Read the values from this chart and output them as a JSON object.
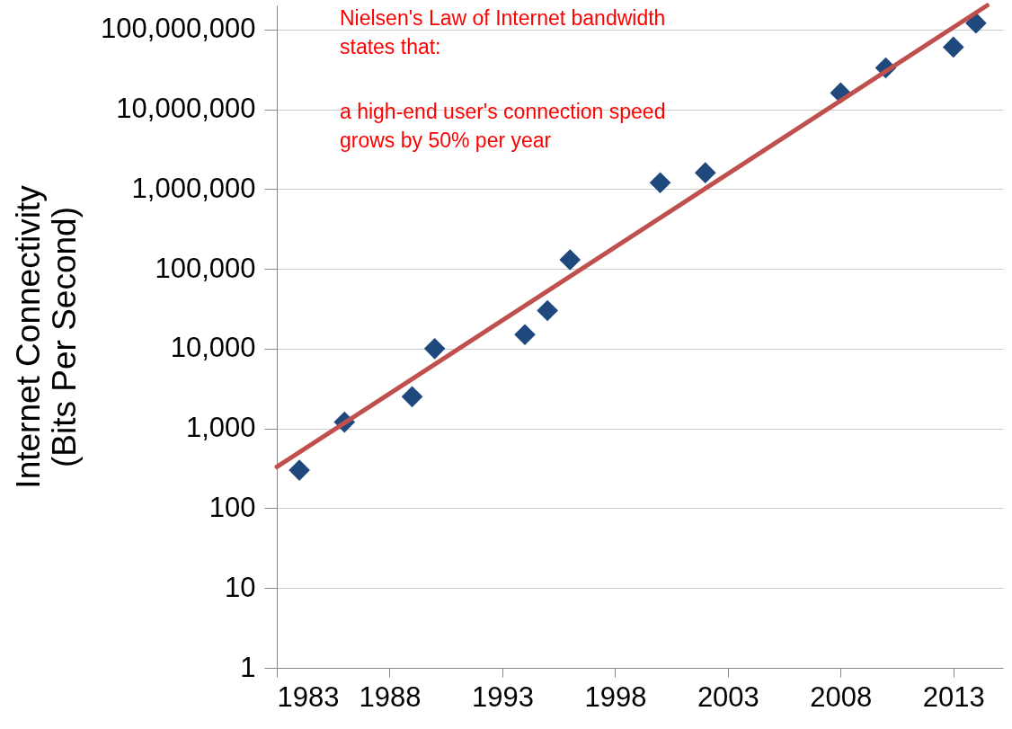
{
  "chart_data": {
    "type": "scatter",
    "ylabel": "Internet Connectivity\n(Bits Per Second)",
    "annotations": [
      "Nielsen's Law of Internet bandwidth\nstates that:",
      "a high-end user's connection speed\ngrows by 50% per year"
    ],
    "series": [
      {
        "color": "#1f497d",
        "marker": "diamond",
        "x": [
          1984,
          1986,
          1989,
          1990,
          1994,
          1995,
          1996,
          2000,
          2002,
          2008,
          2010,
          2013,
          2014
        ],
        "values": [
          300,
          1200,
          2500,
          10000,
          15000,
          30000,
          130000,
          1200000,
          1600000,
          16000000,
          33000000,
          60000000,
          120000000
        ]
      },
      {
        "type": "line",
        "color": "#c0504d",
        "x": [
          1983,
          2014.5
        ],
        "values": [
          330,
          200000000
        ]
      }
    ],
    "xlim": [
      1983,
      2015.2
    ],
    "xticks": [
      1983,
      1988,
      1993,
      1998,
      2003,
      2008,
      2013
    ],
    "ylim": [
      1,
      200000000
    ],
    "yticks": [
      1,
      10,
      100,
      {
        "value": 1000,
        "label": "1,000"
      },
      {
        "value": 10000,
        "label": "10,000"
      },
      {
        "value": 100000,
        "label": "100,000"
      },
      {
        "value": 1000000,
        "label": "1,000,000"
      },
      {
        "value": 10000000,
        "label": "10,000,000"
      },
      {
        "value": 100000000,
        "label": "100,000,000"
      }
    ],
    "log": "y",
    "grid": "y"
  }
}
